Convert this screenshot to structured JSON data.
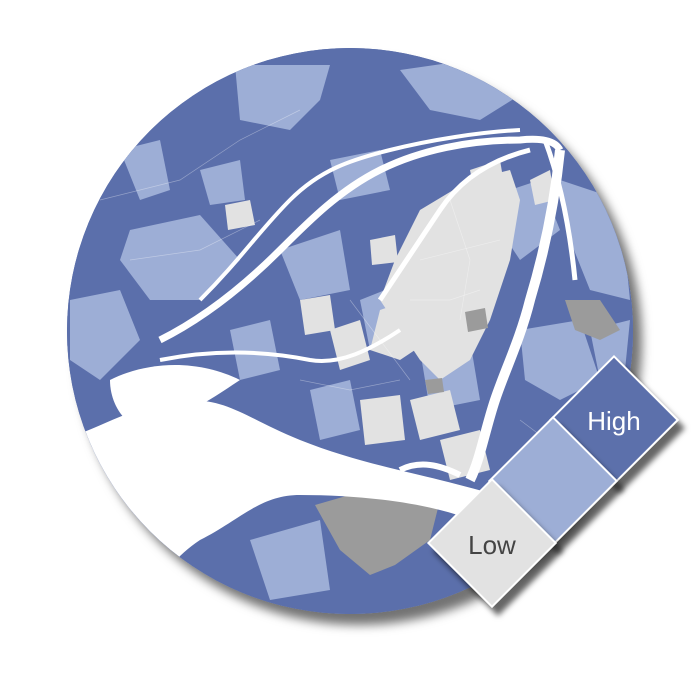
{
  "map": {
    "type": "choropleth",
    "shape": "circle",
    "classes": [
      {
        "id": "high",
        "color": "#5b6fab"
      },
      {
        "id": "mid",
        "color": "#9daed6"
      },
      {
        "id": "low",
        "color": "#e2e2e2"
      },
      {
        "id": "nodata",
        "color": "#9b9b9b"
      }
    ],
    "water_color": "#ffffff"
  },
  "legend": {
    "high_label": "High",
    "low_label": "Low",
    "colors": {
      "high": "#5b6fab",
      "mid": "#9daed6",
      "low": "#e2e2e2"
    }
  }
}
